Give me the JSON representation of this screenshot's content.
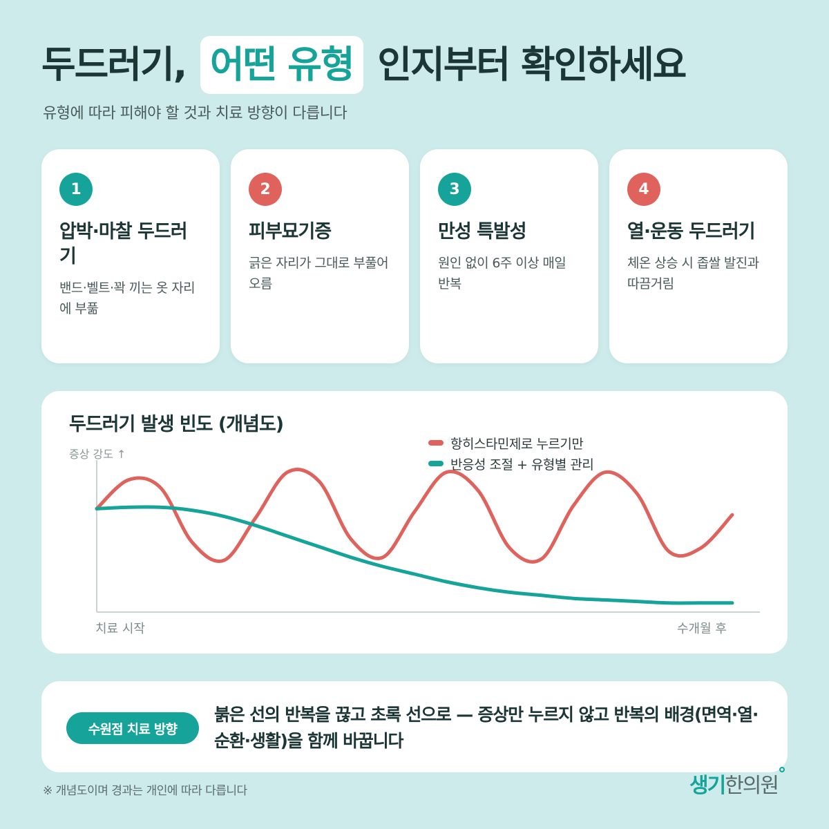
{
  "header": {
    "title_before": "두드러기,",
    "title_highlight": "어떤 유형",
    "title_after": "인지부터 확인하세요",
    "subtitle": "유형에 따라 피해야 할 것과 치료 방향이 다릅니다"
  },
  "cards": [
    {
      "number": "1",
      "title": "압박·마찰 두드러기",
      "desc": "밴드·벨트·꽉 끼는 옷 자리에 부풂",
      "color": "#15a39a"
    },
    {
      "number": "2",
      "title": "피부묘기증",
      "desc": "긁은 자리가 그대로 부풀어 오름",
      "color": "#e0625c"
    },
    {
      "number": "3",
      "title": "만성 특발성",
      "desc": "원인 없이 6주 이상 매일 반복",
      "color": "#15a39a"
    },
    {
      "number": "4",
      "title": "열·운동 두드러기",
      "desc": "체온 상승 시 좁쌀 발진과 따끔거림",
      "color": "#e0625c"
    }
  ],
  "chart_data": {
    "type": "line",
    "title": "두드러기 발생 빈도 (개념도)",
    "ylabel": "증상 강도 ↑",
    "x_start_label": "치료 시작",
    "x_end_label": "수개월 후",
    "legend_placement": "top-right",
    "x": [
      0,
      0.05,
      0.1,
      0.15,
      0.2,
      0.25,
      0.3,
      0.35,
      0.4,
      0.45,
      0.5,
      0.55,
      0.6,
      0.65,
      0.7,
      0.75,
      0.8,
      0.85,
      0.9,
      0.95,
      1.0
    ],
    "series": [
      {
        "name": "항히스타민제로 누르기만",
        "color": "#e0625c",
        "values": [
          0.68,
          0.87,
          0.82,
          0.46,
          0.34,
          0.62,
          0.92,
          0.86,
          0.48,
          0.36,
          0.66,
          0.92,
          0.8,
          0.42,
          0.35,
          0.7,
          0.92,
          0.78,
          0.4,
          0.42,
          0.64
        ]
      },
      {
        "name": "반응성 조절 + 유형별 관리",
        "color": "#15a39a",
        "values": [
          0.68,
          0.69,
          0.69,
          0.67,
          0.63,
          0.57,
          0.5,
          0.43,
          0.36,
          0.3,
          0.25,
          0.2,
          0.16,
          0.13,
          0.11,
          0.09,
          0.08,
          0.07,
          0.06,
          0.06,
          0.06
        ]
      }
    ]
  },
  "bottom": {
    "pill_label": "수원점 치료 방향",
    "text": "붉은 선의 반복을 끊고 초록 선으로 — 증상만 누르지 않고 반복의 배경(면역·열·순환·생활)을 함께 바꿉니다"
  },
  "footnote": "※ 개념도이며 경과는 개인에 따라 다릅니다",
  "logo": {
    "part1": "생기",
    "part2": "한의원"
  }
}
